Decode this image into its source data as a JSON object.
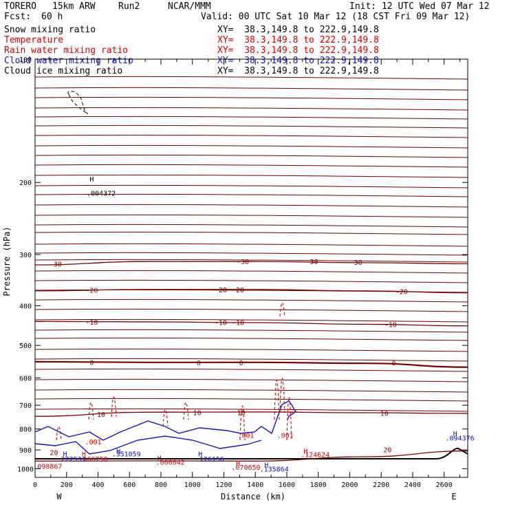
{
  "header": {
    "model": "TORERO",
    "resolution": "15km ARW",
    "run": "Run2",
    "org": "NCAR/MMM",
    "fcst_label": "Fcst:",
    "fcst_value": "60 h",
    "init": "Init: 12 UTC Wed 07 Mar 12",
    "valid": "Valid: 00 UTC Sat 10 Mar 12 (18 CST Fri 09 Mar 12)"
  },
  "fields": [
    {
      "name": "Snow mixing ratio",
      "xy": "XY=  38.3,149.8 to 222.9,149.8",
      "color": "#000000"
    },
    {
      "name": "Temperature",
      "xy": "XY=  38.3,149.8 to 222.9,149.8",
      "color": "#d40000"
    },
    {
      "name": "Rain water mixing ratio",
      "xy": "XY=  38.3,149.8 to 222.9,149.8",
      "color": "#d40000"
    },
    {
      "name": "Cloud water mixing ratio",
      "xy": "XY=  38.3,149.8 to 222.9,149.8",
      "color": "#1010c8"
    },
    {
      "name": "Cloud ice mixing ratio",
      "xy": "XY=  38.3,149.8 to 222.9,149.8",
      "color": "#000000"
    }
  ],
  "chart_data": {
    "type": "cross-section contour",
    "xlabel": "Distance (km)",
    "ylabel": "Pressure (hPa)",
    "xlim": [
      0,
      2750
    ],
    "ylim": [
      1050,
      100
    ],
    "yscale": "log",
    "x_ticks": [
      "0",
      "200",
      "400",
      "600",
      "800",
      "1000",
      "1200",
      "1400",
      "1600",
      "1800",
      "2000",
      "2200",
      "2400",
      "2600"
    ],
    "y_ticks": [
      "100",
      "200",
      "300",
      "400",
      "500",
      "600",
      "700",
      "800",
      "900",
      "1000"
    ],
    "ends": {
      "left": "W",
      "right": "E"
    },
    "temperature_isotherms": [
      {
        "label": "-30",
        "p": [
          318,
          312,
          312,
          314,
          316
        ]
      },
      {
        "label": "-20",
        "p": [
          368,
          365,
          365,
          368,
          372
        ]
      },
      {
        "label": "-10",
        "p": [
          437,
          438,
          440,
          444,
          448
        ]
      },
      {
        "label": "0",
        "p": [
          548,
          550,
          550,
          553,
          565
        ]
      },
      {
        "label": "10",
        "p": [
          745,
          728,
          727,
          730,
          733
        ]
      },
      {
        "label": "20",
        "p": [
          958,
          957,
          958,
          935,
          905
        ]
      }
    ],
    "isotherm_label_positions": [
      {
        "text": "-30",
        "x": 130,
        "p": 316
      },
      {
        "text": "-30",
        "x": 1320,
        "p": 312
      },
      {
        "text": "-30",
        "x": 1760,
        "p": 312
      },
      {
        "text": "-30",
        "x": 2040,
        "p": 313
      },
      {
        "text": "-20",
        "x": 360,
        "p": 366
      },
      {
        "text": "-20",
        "x": 1180,
        "p": 365
      },
      {
        "text": "-20",
        "x": 1290,
        "p": 365
      },
      {
        "text": "-20",
        "x": 2330,
        "p": 369
      },
      {
        "text": "-10",
        "x": 360,
        "p": 438
      },
      {
        "text": "-10",
        "x": 1180,
        "p": 439
      },
      {
        "text": "-10",
        "x": 1290,
        "p": 439
      },
      {
        "text": "-10",
        "x": 2260,
        "p": 444
      },
      {
        "text": "0",
        "x": 360,
        "p": 549
      },
      {
        "text": "0",
        "x": 1040,
        "p": 550
      },
      {
        "text": "0",
        "x": 1310,
        "p": 550
      },
      {
        "text": "0",
        "x": 2280,
        "p": 552
      },
      {
        "text": "10",
        "x": 420,
        "p": 736
      },
      {
        "text": "10",
        "x": 1030,
        "p": 728
      },
      {
        "text": "10",
        "x": 1310,
        "p": 728
      },
      {
        "text": "10",
        "x": 2220,
        "p": 731
      },
      {
        "text": "20",
        "x": 120,
        "p": 912
      },
      {
        "text": "20",
        "x": 2240,
        "p": 898
      }
    ],
    "annotations": [
      {
        "text": "H",
        "x": 360,
        "p": 196,
        "color": "#000000"
      },
      {
        "text": ".004372",
        "x": 420,
        "p": 212,
        "color": "#000000"
      },
      {
        "text": ".001",
        "x": 370,
        "p": 858,
        "color": "#d40000"
      },
      {
        "text": ".001",
        "x": 1340,
        "p": 828,
        "color": "#d40000"
      },
      {
        "text": ".001",
        "x": 1590,
        "p": 828,
        "color": "#d40000"
      },
      {
        "text": "H",
        "x": 190,
        "p": 918,
        "color": "#1010c8"
      },
      {
        "text": ".272533",
        "x": 230,
        "p": 945,
        "color": "#1010c8"
      },
      {
        "text": "H",
        "x": 310,
        "p": 918,
        "color": "#d40000"
      },
      {
        "text": ".066758",
        "x": 370,
        "p": 945,
        "color": "#d40000"
      },
      {
        "text": "H",
        "x": 530,
        "p": 905,
        "color": "#1010c8"
      },
      {
        "text": ".351059",
        "x": 580,
        "p": 918,
        "color": "#1010c8"
      },
      {
        "text": "H",
        "x": 790,
        "p": 940,
        "color": "#d40000"
      },
      {
        "text": ".066642",
        "x": 860,
        "p": 962,
        "color": "#d40000"
      },
      {
        "text": "H",
        "x": 1050,
        "p": 918,
        "color": "#1010c8"
      },
      {
        "text": ".126156",
        "x": 1110,
        "p": 945,
        "color": "#1010c8"
      },
      {
        "text": "H",
        "x": 1290,
        "p": 968,
        "color": "#d40000"
      },
      {
        "text": ".070650",
        "x": 1340,
        "p": 990,
        "color": "#d40000"
      },
      {
        "text": "H",
        "x": 1470,
        "p": 978,
        "color": "#1010c8"
      },
      {
        "text": ".135864",
        "x": 1520,
        "p": 1000,
        "color": "#1010c8"
      },
      {
        "text": "H",
        "x": 1720,
        "p": 905,
        "color": "#d40000"
      },
      {
        "text": ".124624",
        "x": 1780,
        "p": 922,
        "color": "#d40000"
      },
      {
        "text": "H",
        "x": 2670,
        "p": 820,
        "color": "#1010c8"
      },
      {
        "text": ".094376",
        "x": 2700,
        "p": 840,
        "color": "#1010c8"
      },
      {
        "text": ".098867",
        "x": 80,
        "p": 985,
        "color": "#d40000"
      }
    ]
  }
}
